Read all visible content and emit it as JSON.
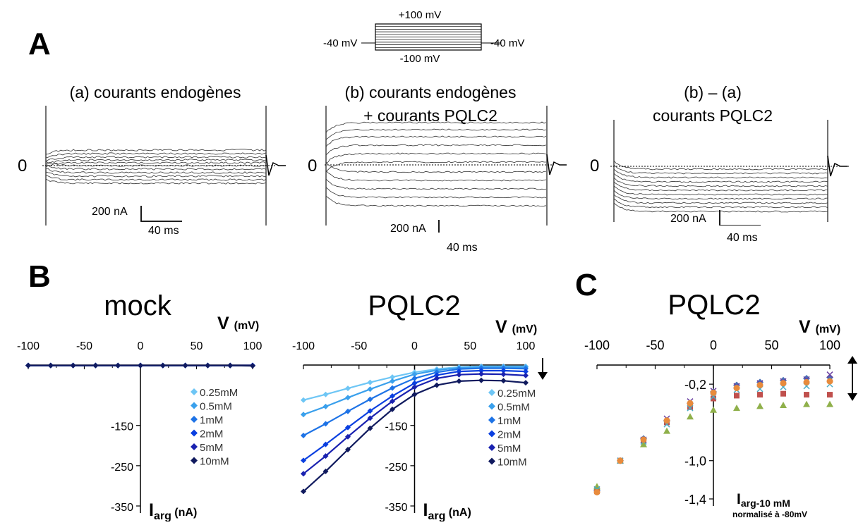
{
  "panel_labels": {
    "a": "A",
    "b": "B",
    "c": "C"
  },
  "protocol": {
    "top": "+100 mV",
    "bottom": "-100 mV",
    "left": "-40 mV",
    "right": "-40 mV"
  },
  "traces": [
    {
      "title": "(a) courants endogènes",
      "zero": "0",
      "scale_current": "200 nA",
      "scale_time": "40 ms"
    },
    {
      "title": "(b) courants endogènes\n+ courants PQLC2",
      "zero": "0",
      "scale_current": "200 nA",
      "scale_time": "40 ms"
    },
    {
      "title": "(b) – (a)\ncourants PQLC2",
      "zero": "0",
      "scale_current": "200 nA",
      "scale_time": "40 ms"
    }
  ],
  "iv_common": {
    "vlabel": "V",
    "vunit": "(mV)",
    "ilabel": "I",
    "isub": "arg",
    "iunit": "(nA)",
    "legend": [
      "0.25mM",
      "0.5mM",
      "1mM",
      "2mM",
      "5mM",
      "10mM"
    ],
    "colors": [
      "#6ec6f5",
      "#3aa0ec",
      "#1e73e6",
      "#0a3fe0",
      "#1a22b0",
      "#101a5e"
    ]
  },
  "chart_data": [
    {
      "type": "line",
      "title": "mock",
      "xlabel": "V (mV)",
      "ylabel": "Iarg (nA)",
      "xlim": [
        -100,
        100
      ],
      "ylim": [
        -350,
        0
      ],
      "x_ticks": [
        "-100",
        "-50",
        "0",
        "50",
        "100"
      ],
      "y_ticks": [
        "-150",
        "-250",
        "-350"
      ],
      "x": [
        -100,
        -80,
        -60,
        -40,
        -20,
        0,
        20,
        40,
        60,
        80,
        100
      ],
      "series": [
        {
          "name": "0.25mM",
          "values": [
            -1,
            -1,
            -1,
            -1,
            -1,
            -1,
            -1,
            -1,
            -1,
            -1,
            -1
          ]
        },
        {
          "name": "0.5mM",
          "values": [
            -1,
            -1,
            -1,
            -1,
            -1,
            -1,
            -1,
            -1,
            -1,
            -1,
            -1
          ]
        },
        {
          "name": "1mM",
          "values": [
            -1,
            -1,
            -1,
            -1,
            -1,
            -1,
            -1,
            -1,
            -1,
            -1,
            -1
          ]
        },
        {
          "name": "2mM",
          "values": [
            -1,
            -1,
            -1,
            -1,
            -1,
            -1,
            -1,
            -1,
            -1,
            -1,
            -1
          ]
        },
        {
          "name": "5mM",
          "values": [
            -1,
            -1,
            -1,
            -1,
            -1,
            -1,
            -1,
            -1,
            -1,
            -1,
            -1
          ]
        },
        {
          "name": "10mM",
          "values": [
            -1,
            -1,
            -1,
            -1,
            -1,
            -1,
            -1,
            -1,
            -1,
            -1,
            -2
          ]
        }
      ]
    },
    {
      "type": "line",
      "title": "PQLC2",
      "xlabel": "V (mV)",
      "ylabel": "Iarg (nA)",
      "xlim": [
        -100,
        100
      ],
      "ylim": [
        -350,
        0
      ],
      "x_ticks": [
        "-100",
        "-50",
        "0",
        "50",
        "100"
      ],
      "y_ticks": [
        "-150",
        "-250",
        "-350"
      ],
      "x": [
        -100,
        -80,
        -60,
        -40,
        -20,
        0,
        20,
        40,
        60,
        80,
        100
      ],
      "series": [
        {
          "name": "0.25mM",
          "values": [
            -87,
            -73,
            -58,
            -43,
            -30,
            -18,
            -10,
            -5,
            -3,
            -3,
            -3
          ]
        },
        {
          "name": "0.5mM",
          "values": [
            -123,
            -103,
            -81,
            -60,
            -40,
            -23,
            -13,
            -7,
            -5,
            -5,
            -5
          ]
        },
        {
          "name": "1mM",
          "values": [
            -175,
            -146,
            -115,
            -85,
            -57,
            -33,
            -18,
            -10,
            -8,
            -8,
            -9
          ]
        },
        {
          "name": "2mM",
          "values": [
            -237,
            -197,
            -155,
            -114,
            -77,
            -45,
            -25,
            -16,
            -14,
            -14,
            -16
          ]
        },
        {
          "name": "5mM",
          "values": [
            -270,
            -226,
            -178,
            -132,
            -90,
            -55,
            -33,
            -24,
            -22,
            -23,
            -26
          ]
        },
        {
          "name": "10mM",
          "values": [
            -314,
            -264,
            -210,
            -157,
            -110,
            -73,
            -50,
            -40,
            -38,
            -39,
            -44
          ]
        }
      ]
    },
    {
      "type": "scatter",
      "title": "PQLC2",
      "xlabel": "V (mV)",
      "ylabel": "Iarg-10 mM normalisé à -80mV",
      "xlim": [
        -100,
        100
      ],
      "ylim": [
        -1.4,
        0
      ],
      "x_ticks": [
        "-100",
        "-50",
        "0",
        "50",
        "100"
      ],
      "y_ticks": [
        "-0,2",
        "-1,0",
        "-1,4"
      ],
      "x": [
        -100,
        -80,
        -60,
        -40,
        -20,
        0,
        20,
        40,
        60,
        80,
        100
      ],
      "series": [
        {
          "marker": "diamond",
          "color": "#4a6fb5",
          "values": [
            -1.31,
            -1.0,
            -0.77,
            -0.58,
            -0.4,
            -0.28,
            -0.21,
            -0.18,
            -0.16,
            -0.14,
            -0.13
          ]
        },
        {
          "marker": "square",
          "color": "#c0504d",
          "values": [
            -1.32,
            -1.0,
            -0.79,
            -0.6,
            -0.44,
            -0.35,
            -0.32,
            -0.31,
            -0.3,
            -0.31,
            -0.31
          ]
        },
        {
          "marker": "triangle",
          "color": "#8fb04a",
          "values": [
            -1.27,
            -1.0,
            -0.83,
            -0.69,
            -0.54,
            -0.47,
            -0.45,
            -0.43,
            -0.42,
            -0.41,
            -0.41
          ]
        },
        {
          "marker": "x",
          "color": "#6a3ea0",
          "values": [
            -1.3,
            -1.0,
            -0.78,
            -0.56,
            -0.38,
            -0.27,
            -0.22,
            -0.19,
            -0.17,
            -0.15,
            -0.1
          ]
        },
        {
          "marker": "x",
          "color": "#4bacc6",
          "values": [
            -1.3,
            -1.0,
            -0.8,
            -0.62,
            -0.45,
            -0.33,
            -0.26,
            -0.25,
            -0.23,
            -0.22,
            -0.2
          ]
        },
        {
          "marker": "circle",
          "color": "#e88b3c",
          "values": [
            -1.33,
            -1.0,
            -0.78,
            -0.58,
            -0.4,
            -0.29,
            -0.24,
            -0.21,
            -0.19,
            -0.18,
            -0.17
          ]
        }
      ]
    }
  ]
}
